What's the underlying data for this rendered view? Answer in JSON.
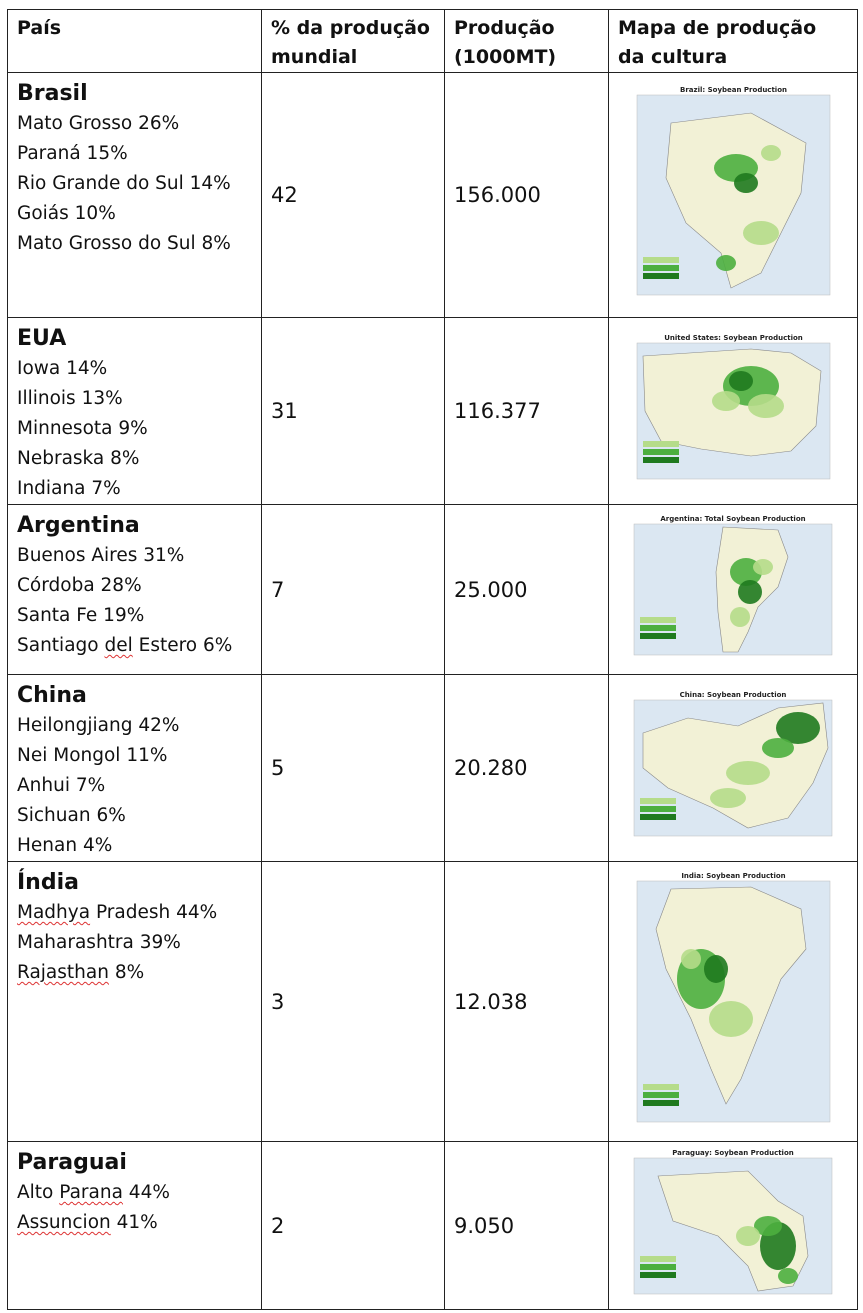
{
  "headers": [
    "País",
    "% da produção mundial",
    "Produção (1000MT)",
    "Mapa de produção da cultura"
  ],
  "rows": [
    {
      "country": "Brasil",
      "regions": [
        {
          "text": "Mato Grosso 26%"
        },
        {
          "text": "Paraná 15%"
        },
        {
          "text": "Rio Grande do Sul 14%"
        },
        {
          "text": "Goiás 10%"
        },
        {
          "text": "Mato Grosso do Sul 8%"
        }
      ],
      "share": "42",
      "production": "156.000",
      "map": {
        "title": "Brazil: Soybean Production",
        "icon": "brazil-map"
      }
    },
    {
      "country": "EUA",
      "regions": [
        {
          "text": "Iowa 14%"
        },
        {
          "text": "Illinois 13%"
        },
        {
          "text": "Minnesota 9%"
        },
        {
          "text": "Nebraska 8%"
        },
        {
          "text": "Indiana 7%"
        }
      ],
      "share": "31",
      "production": "116.377",
      "map": {
        "title": "United States: Soybean Production",
        "icon": "usa-map"
      }
    },
    {
      "country": "Argentina",
      "regions": [
        {
          "text": "Buenos Aires 31%"
        },
        {
          "text": "Córdoba 28%"
        },
        {
          "text": "Santa Fe 19%"
        },
        {
          "text": "Santiago del Estero 6%"
        }
      ],
      "share": "7",
      "production": "25.000",
      "map": {
        "title": "Argentina: Total Soybean Production",
        "icon": "argentina-map"
      }
    },
    {
      "country": "China",
      "regions": [
        {
          "text": "Heilongjiang 42%"
        },
        {
          "text": "Nei Mongol 11%"
        },
        {
          "text": "Anhui 7%"
        },
        {
          "text": "Sichuan 6%"
        },
        {
          "text": "Henan 4%"
        }
      ],
      "share": "5",
      "production": "20.280",
      "map": {
        "title": "China: Soybean Production",
        "icon": "china-map"
      }
    },
    {
      "country": "Índia",
      "regions": [
        {
          "text": "Madhya Pradesh 44%"
        },
        {
          "text": "Maharashtra 39%"
        },
        {
          "text": "Rajasthan 8%"
        }
      ],
      "share": "3",
      "production": "12.038",
      "map": {
        "title": "India: Soybean Production",
        "icon": "india-map"
      }
    },
    {
      "country": "Paraguai",
      "regions": [
        {
          "text": "Alto Parana 44%"
        },
        {
          "text": "Assuncion 41%"
        }
      ],
      "share": "2",
      "production": "9.050",
      "map": {
        "title": "Paraguay: Soybean Production",
        "icon": "paraguay-map"
      }
    }
  ],
  "spellcheck_flagged": [
    "del",
    "Madhya",
    "Rajasthan",
    "Parana",
    "Assuncion"
  ],
  "colors": {
    "dark_green": "#1f7a1f",
    "mid_green": "#4caf3f",
    "light_green": "#b5dc8a",
    "pale": "#f2f1d6",
    "water": "#dbe7f2"
  }
}
